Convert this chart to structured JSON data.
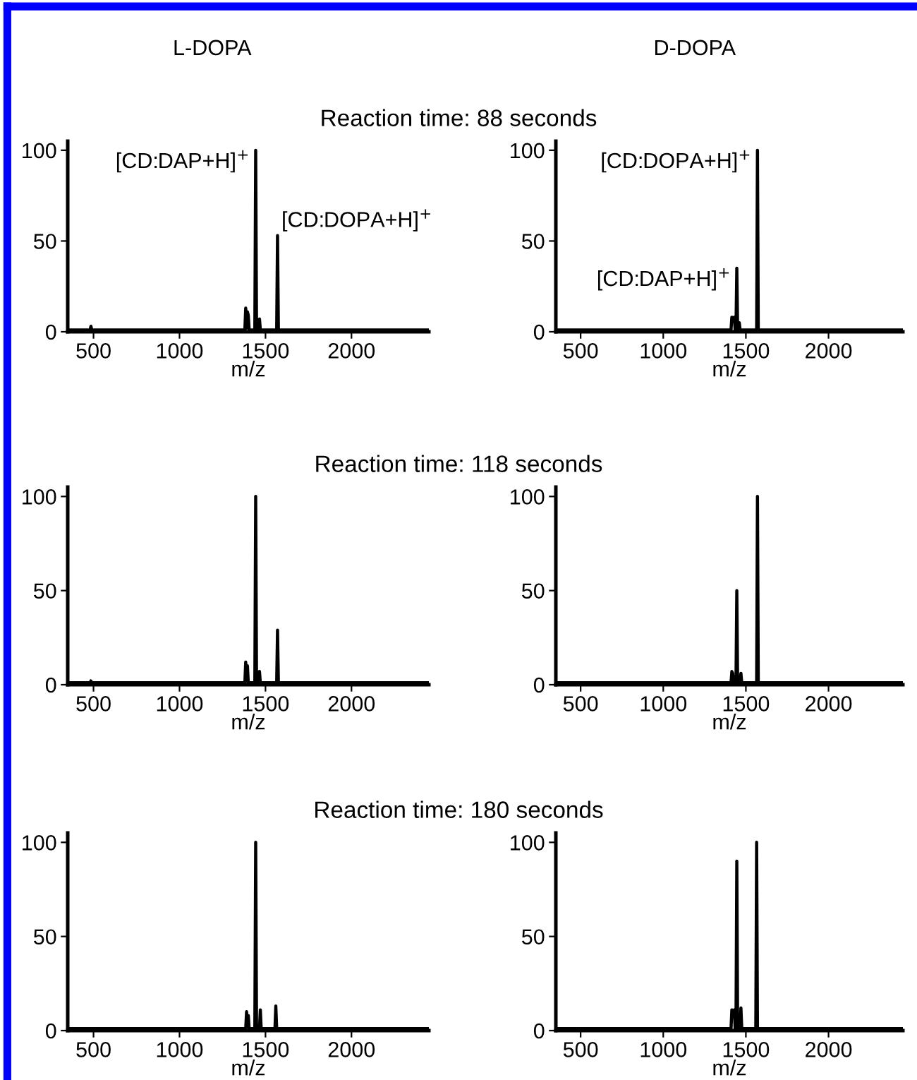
{
  "chart_data": [
    {
      "type": "line",
      "title": "L-DOPA",
      "subtitle": "Reaction time: 88 seconds",
      "xlabel": "m/z",
      "xlim": [
        350,
        2450
      ],
      "xticks": [
        500,
        1000,
        1500,
        2000
      ],
      "ylim": [
        0,
        105
      ],
      "yticks": [
        0,
        50,
        100
      ],
      "grid": false,
      "legend": false,
      "marker": "none",
      "line_style": "solid",
      "annotations": [
        {
          "text": "[CD:DAP+H]$^{+}$",
          "x": 1443,
          "y": 100
        },
        {
          "text": "[CD:DOPA+H]$^{+}$",
          "x": 1570,
          "y": 53
        }
      ],
      "series": [
        {
          "color": "#000000",
          "x": [
            350,
            480,
            485,
            490,
            1380,
            1385,
            1390,
            1395,
            1400,
            1405,
            1438,
            1443,
            1448,
            1460,
            1465,
            1470,
            1565,
            1570,
            1575,
            2450
          ],
          "values": [
            1,
            1,
            3,
            1,
            1,
            13,
            2,
            11,
            9,
            1,
            1,
            100,
            1,
            1,
            7,
            1,
            1,
            53,
            1,
            1
          ]
        }
      ]
    },
    {
      "type": "line",
      "title": "D-DOPA",
      "xlabel": "m/z",
      "xlim": [
        350,
        2450
      ],
      "xticks": [
        500,
        1000,
        1500,
        2000
      ],
      "ylim": [
        0,
        105
      ],
      "yticks": [
        0,
        50,
        100
      ],
      "grid": false,
      "legend": false,
      "marker": "none",
      "line_style": "solid",
      "annotations": [
        {
          "text": "[CD:DOPA+H]$^{+}$",
          "x": 1570,
          "y": 100
        },
        {
          "text": "[CD:DAP+H]$^{+}$",
          "x": 1445,
          "y": 35
        }
      ],
      "series": [
        {
          "color": "#000000",
          "x": [
            350,
            1410,
            1415,
            1420,
            1430,
            1435,
            1440,
            1445,
            1450,
            1455,
            1460,
            1465,
            1565,
            1570,
            1575,
            2450
          ],
          "values": [
            1,
            1,
            8,
            7,
            8,
            1,
            1,
            35,
            1,
            1,
            5,
            1,
            1,
            100,
            1,
            1
          ]
        }
      ]
    },
    {
      "type": "line",
      "subtitle": "Reaction time: 118 seconds",
      "xlabel": "m/z",
      "xlim": [
        350,
        2450
      ],
      "xticks": [
        500,
        1000,
        1500,
        2000
      ],
      "ylim": [
        0,
        105
      ],
      "yticks": [
        0,
        50,
        100
      ],
      "grid": false,
      "legend": false,
      "marker": "none",
      "line_style": "solid",
      "series": [
        {
          "color": "#000000",
          "x": [
            350,
            480,
            485,
            490,
            1380,
            1385,
            1390,
            1395,
            1400,
            1438,
            1443,
            1448,
            1460,
            1465,
            1470,
            1565,
            1570,
            1575,
            2450
          ],
          "values": [
            1,
            1,
            2,
            1,
            1,
            12,
            2,
            10,
            1,
            1,
            100,
            1,
            1,
            7,
            1,
            1,
            29,
            1,
            1
          ]
        }
      ]
    },
    {
      "type": "line",
      "xlabel": "m/z",
      "xlim": [
        350,
        2450
      ],
      "xticks": [
        500,
        1000,
        1500,
        2000
      ],
      "ylim": [
        0,
        105
      ],
      "yticks": [
        0,
        50,
        100
      ],
      "grid": false,
      "legend": false,
      "marker": "none",
      "line_style": "solid",
      "series": [
        {
          "color": "#000000",
          "x": [
            350,
            1410,
            1415,
            1420,
            1425,
            1440,
            1445,
            1450,
            1465,
            1470,
            1475,
            1565,
            1570,
            1575,
            2450
          ],
          "values": [
            1,
            1,
            7,
            6,
            1,
            1,
            50,
            1,
            1,
            6,
            1,
            1,
            100,
            1,
            1
          ]
        }
      ]
    },
    {
      "type": "line",
      "subtitle": "Reaction time: 180 seconds",
      "xlabel": "m/z",
      "xlim": [
        350,
        2450
      ],
      "xticks": [
        500,
        1000,
        1500,
        2000
      ],
      "ylim": [
        0,
        105
      ],
      "yticks": [
        0,
        50,
        100
      ],
      "grid": false,
      "legend": false,
      "marker": "none",
      "line_style": "solid",
      "series": [
        {
          "color": "#000000",
          "x": [
            350,
            1385,
            1390,
            1395,
            1400,
            1405,
            1438,
            1443,
            1448,
            1465,
            1470,
            1475,
            1555,
            1560,
            1565,
            2450
          ],
          "values": [
            1,
            1,
            10,
            2,
            8,
            1,
            1,
            100,
            1,
            1,
            11,
            1,
            1,
            13,
            1,
            1
          ]
        }
      ]
    },
    {
      "type": "line",
      "xlabel": "m/z",
      "xlim": [
        350,
        2450
      ],
      "xticks": [
        500,
        1000,
        1500,
        2000
      ],
      "ylim": [
        0,
        105
      ],
      "yticks": [
        0,
        50,
        100
      ],
      "grid": false,
      "legend": false,
      "marker": "none",
      "line_style": "solid",
      "series": [
        {
          "color": "#000000",
          "x": [
            350,
            1410,
            1415,
            1420,
            1430,
            1435,
            1440,
            1445,
            1450,
            1465,
            1470,
            1475,
            1560,
            1565,
            1570,
            2450
          ],
          "values": [
            1,
            1,
            11,
            10,
            11,
            1,
            1,
            90,
            1,
            1,
            12,
            1,
            1,
            100,
            1,
            1
          ]
        }
      ]
    }
  ]
}
